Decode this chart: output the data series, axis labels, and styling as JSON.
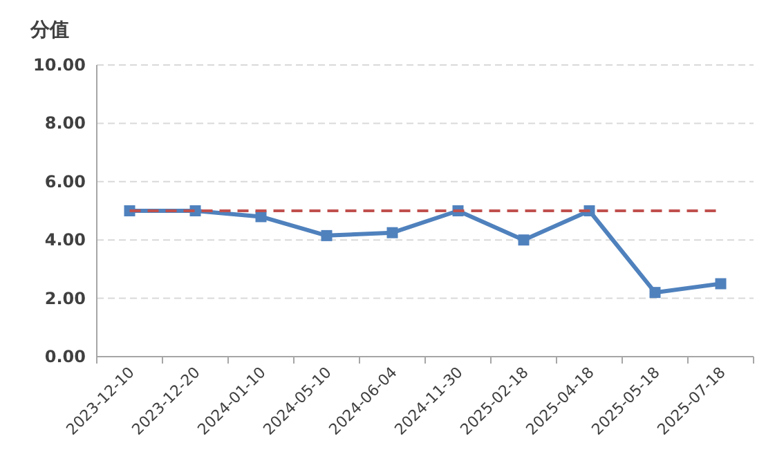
{
  "chart_data": {
    "type": "line",
    "ylabel": "分值",
    "categories": [
      "2023-12-10",
      "2023-12-20",
      "2024-01-10",
      "2024-05-10",
      "2024-06-04",
      "2024-11-30",
      "2025-02-18",
      "2025-04-18",
      "2025-05-18",
      "2025-07-18"
    ],
    "series": [
      {
        "color": "#4f81bd",
        "values": [
          5.0,
          5.0,
          4.8,
          4.15,
          4.25,
          5.0,
          4.0,
          5.0,
          2.2,
          2.5
        ]
      }
    ],
    "ref_lines": [
      {
        "axis": "y",
        "value": 5,
        "color": "#c0504d",
        "line_style": "dashed"
      }
    ],
    "ylim": [
      0,
      10
    ],
    "yticks": [
      {
        "value": 0,
        "label": "0.00"
      },
      {
        "value": 2,
        "label": "2.00"
      },
      {
        "value": 4,
        "label": "4.00"
      },
      {
        "value": 6,
        "label": "6.00"
      },
      {
        "value": 8,
        "label": "8.00"
      },
      {
        "value": 10,
        "label": "10.00"
      }
    ],
    "grid": "y",
    "marker": "square",
    "line_style": "solid"
  }
}
